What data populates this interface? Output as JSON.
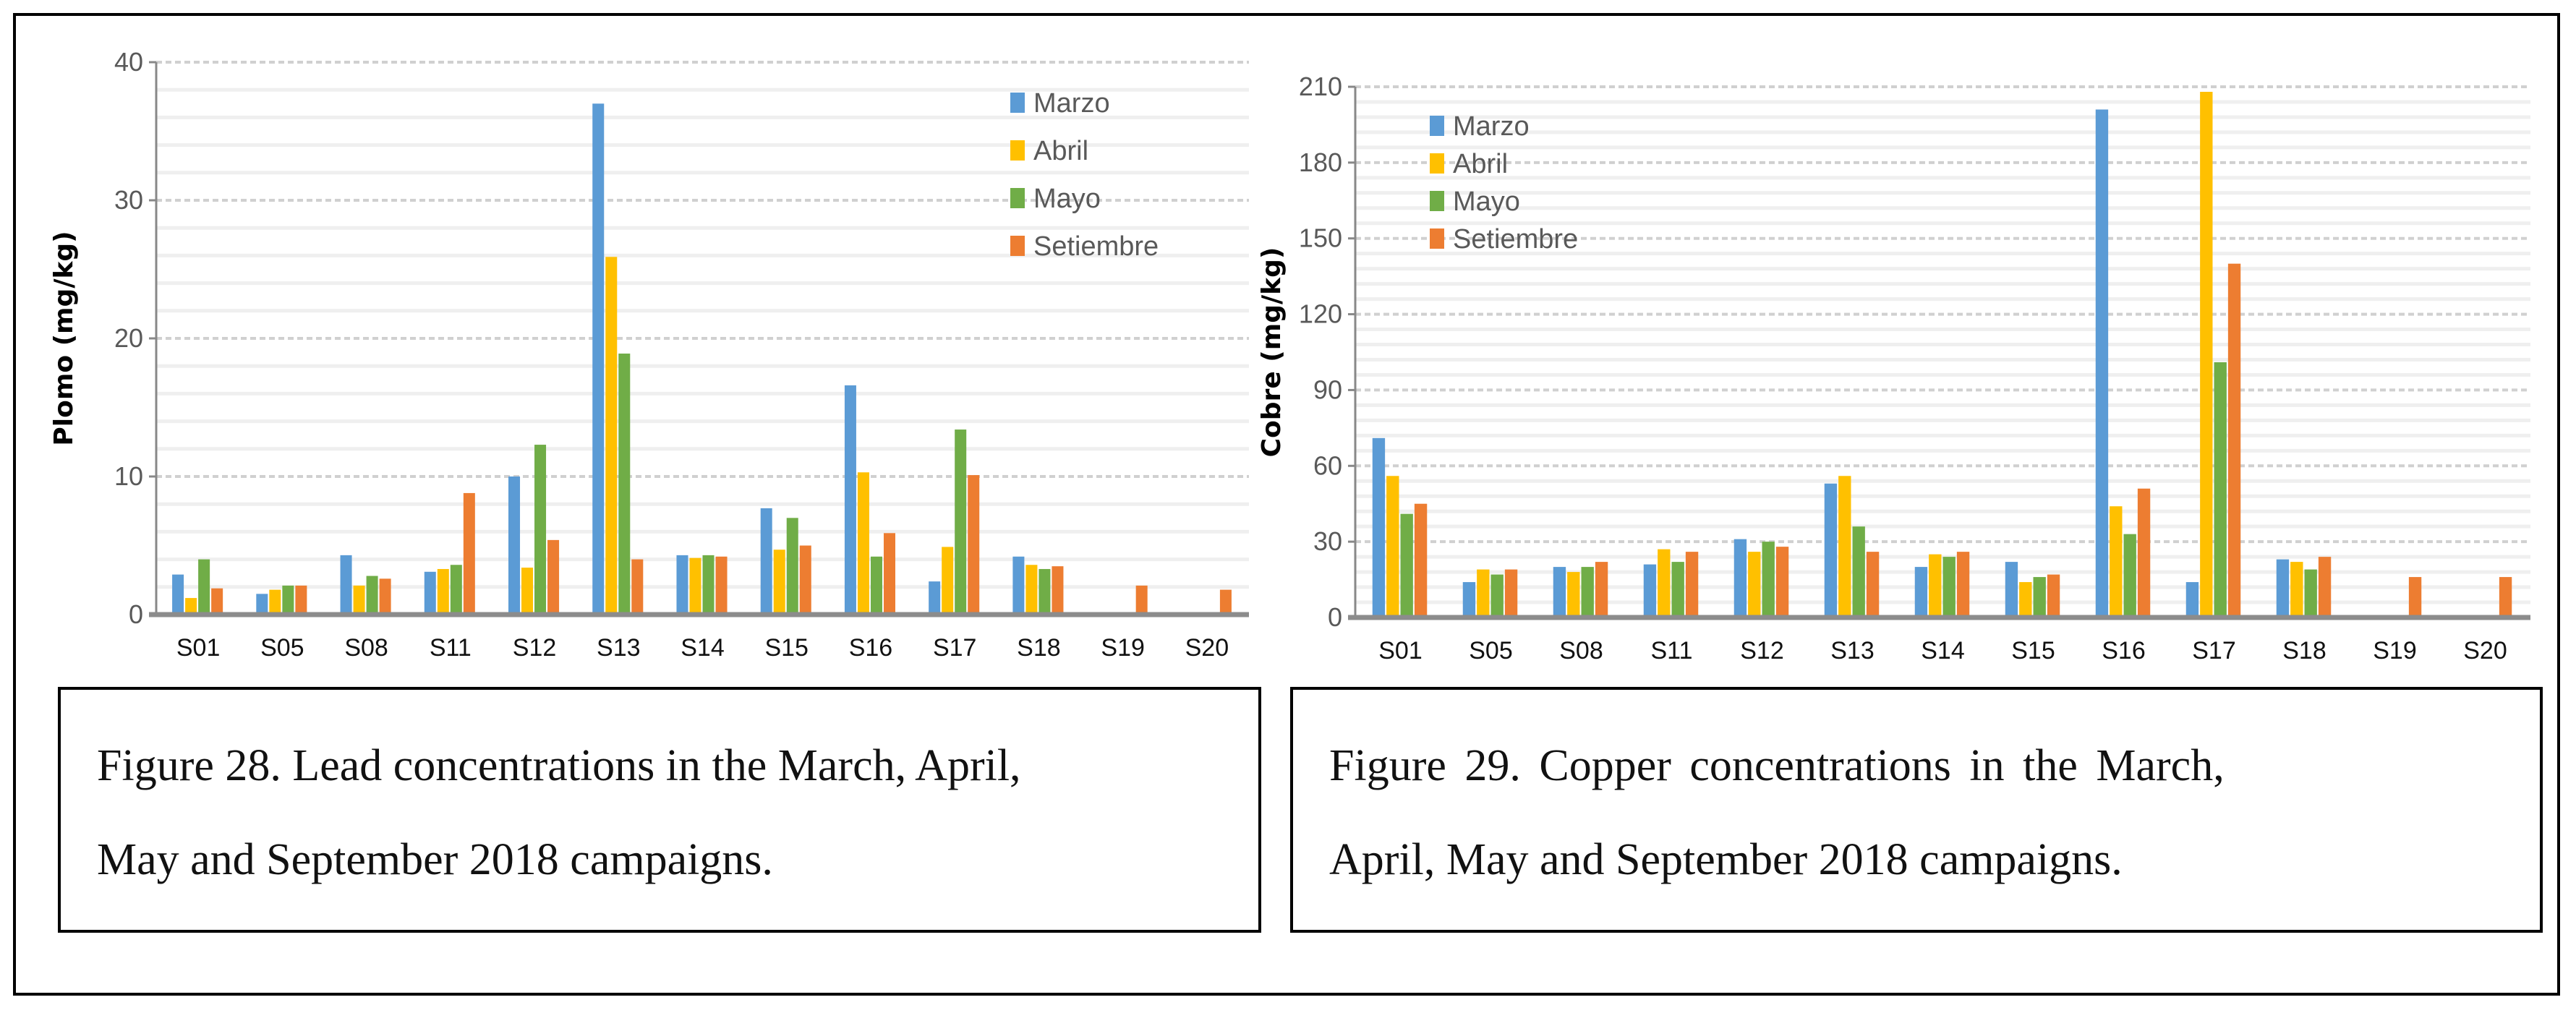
{
  "colors": {
    "Marzo": "#5b9bd5",
    "Abril": "#ffc000",
    "Mayo": "#70ad47",
    "Setiembre": "#ed7d31"
  },
  "captions": [
    {
      "line1": "Figure 28. Lead concentrations in the March, April,",
      "line2": "May and September 2018 campaigns."
    },
    {
      "line1": "Figure 29.  Copper concentrations in the March,",
      "line2": "April, May and September 2018 campaigns."
    }
  ],
  "chart_data": [
    {
      "type": "bar",
      "title": "",
      "xlabel": "",
      "ylabel": "Plomo (mg/kg)",
      "ylim": [
        0,
        40
      ],
      "yticks": [
        "0",
        "10",
        "20",
        "30",
        "40"
      ],
      "grid": true,
      "legend_position": "top-right",
      "categories": [
        "S01",
        "S05",
        "S08",
        "S11",
        "S12",
        "S13",
        "S14",
        "S15",
        "S16",
        "S17",
        "S18",
        "S19",
        "S20"
      ],
      "series": [
        {
          "name": "Marzo",
          "values": [
            2.9,
            1.5,
            4.3,
            3.1,
            10.0,
            37.0,
            4.3,
            7.7,
            16.6,
            2.4,
            4.2,
            0,
            0
          ]
        },
        {
          "name": "Abril",
          "values": [
            1.2,
            1.8,
            2.1,
            3.3,
            3.4,
            25.9,
            4.1,
            4.7,
            10.3,
            4.9,
            3.6,
            0,
            0
          ]
        },
        {
          "name": "Mayo",
          "values": [
            4.0,
            2.1,
            2.8,
            3.6,
            12.3,
            18.9,
            4.3,
            7.0,
            4.2,
            13.4,
            3.3,
            0,
            0
          ]
        },
        {
          "name": "Setiembre",
          "values": [
            1.9,
            2.1,
            2.6,
            8.8,
            5.4,
            4.0,
            4.2,
            5.0,
            5.9,
            10.1,
            3.5,
            2.1,
            1.8
          ]
        }
      ]
    },
    {
      "type": "bar",
      "title": "",
      "xlabel": "",
      "ylabel": "Cobre (mg/kg)",
      "ylim": [
        0,
        210
      ],
      "yticks": [
        "0",
        "30",
        "60",
        "90",
        "120",
        "150",
        "180",
        "210"
      ],
      "grid": true,
      "legend_position": "top-left",
      "categories": [
        "S01",
        "S05",
        "S08",
        "S11",
        "S12",
        "S13",
        "S14",
        "S15",
        "S16",
        "S17",
        "S18",
        "S19",
        "S20"
      ],
      "series": [
        {
          "name": "Marzo",
          "values": [
            71,
            14,
            20,
            21,
            31,
            53,
            20,
            22,
            201,
            14,
            23,
            0,
            0
          ]
        },
        {
          "name": "Abril",
          "values": [
            56,
            19,
            18,
            27,
            26,
            56,
            25,
            14,
            44,
            208,
            22,
            0,
            0
          ]
        },
        {
          "name": "Mayo",
          "values": [
            41,
            17,
            20,
            22,
            30,
            36,
            24,
            16,
            33,
            101,
            19,
            0,
            0
          ]
        },
        {
          "name": "Setiembre",
          "values": [
            45,
            19,
            22,
            26,
            28,
            26,
            26,
            17,
            51,
            140,
            24,
            16,
            16
          ]
        }
      ]
    }
  ]
}
